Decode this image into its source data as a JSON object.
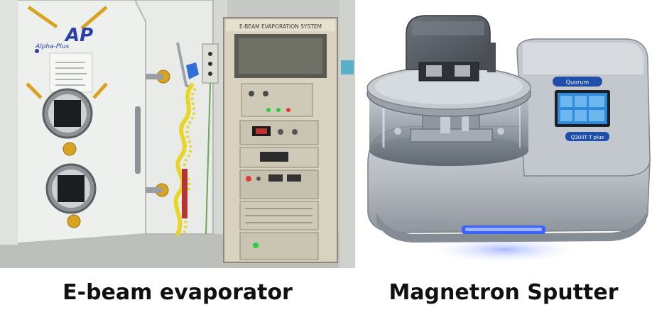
{
  "photos": {
    "left": {
      "caption": "E-beam evaporator",
      "logo_text": "AP",
      "logo_subtext": "Alpha-Plus",
      "rack_label": "E-BEAM EVAPORATION SYSTEM"
    },
    "right": {
      "caption": "Magnetron Sputter",
      "brand_text": "Quorum",
      "model_text": "Q300T T plus"
    }
  },
  "colors": {
    "wall": "#c9cbc8",
    "chamber_white": "#eef0ee",
    "rack_beige": "#d9d2bf",
    "brass_knob": "#d7a321",
    "coil_yellow": "#e8d52a",
    "sputter_body": "#b9bec5",
    "sputter_lid": "#555b63",
    "screen_blue": "#2f8bd8",
    "led_blue": "#3a63ff"
  }
}
